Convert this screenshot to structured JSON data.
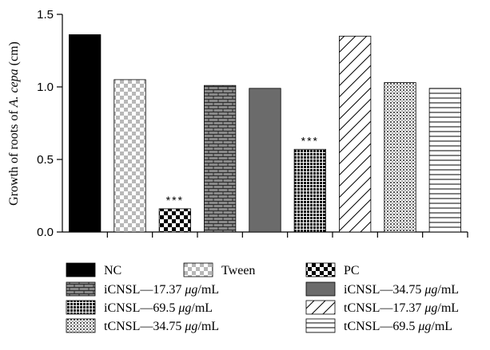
{
  "chart_data": {
    "type": "bar",
    "ylabel_main": "Growth of roots of ",
    "ylabel_species": "A. cepa",
    "ylabel_unit": " (cm)",
    "ylim": [
      0,
      1.5
    ],
    "yticks": [
      "0.0",
      "0.5",
      "1.0",
      "1.5"
    ],
    "grid": false,
    "legend_placement": "bottom",
    "categories": [
      "NC",
      "Tween",
      "PC",
      "iCNSL—17.37 μg/mL",
      "iCNSL—34.75 μg/mL",
      "iCNSL—69.5 μg/mL",
      "tCNSL—17.37 μg/mL",
      "tCNSL—34.75 μg/mL",
      "tCNSL—69.5 μg/mL"
    ],
    "values": [
      1.36,
      1.05,
      0.16,
      1.01,
      0.99,
      0.57,
      1.35,
      1.03,
      0.99
    ],
    "significance": [
      "",
      "",
      "***",
      "",
      "",
      "***",
      "",
      "",
      ""
    ],
    "patterns": [
      "solid-black",
      "light-checker",
      "checker",
      "brick",
      "solid-gray",
      "dense-dots",
      "diagonal",
      "dots",
      "horizontal"
    ]
  },
  "legend": [
    {
      "label": "NC",
      "pattern": "solid-black"
    },
    {
      "label": "Tween",
      "pattern": "light-checker"
    },
    {
      "label": "PC",
      "pattern": "checker"
    },
    {
      "prefix": "iCNSL—17.37 ",
      "unit": "μg",
      "suffix": "/mL",
      "pattern": "brick"
    },
    {
      "prefix": "iCNSL—34.75 ",
      "unit": "μg",
      "suffix": "/mL",
      "pattern": "solid-gray"
    },
    {
      "prefix": "iCNSL—69.5 ",
      "unit": "μg",
      "suffix": "/mL",
      "pattern": "dense-dots"
    },
    {
      "prefix": "tCNSL—17.37 ",
      "unit": "μg",
      "suffix": "/mL",
      "pattern": "diagonal"
    },
    {
      "prefix": "tCNSL—34.75 ",
      "unit": "μg",
      "suffix": "/mL",
      "pattern": "dots"
    },
    {
      "prefix": "tCNSL—69.5 ",
      "unit": "μg",
      "suffix": "/mL",
      "pattern": "horizontal"
    }
  ],
  "colors": {
    "solid_black": "#000000",
    "solid_gray": "#6b6b6b",
    "light_checker": "#b8b8b8",
    "brick_fill": "#8a8a8a"
  }
}
